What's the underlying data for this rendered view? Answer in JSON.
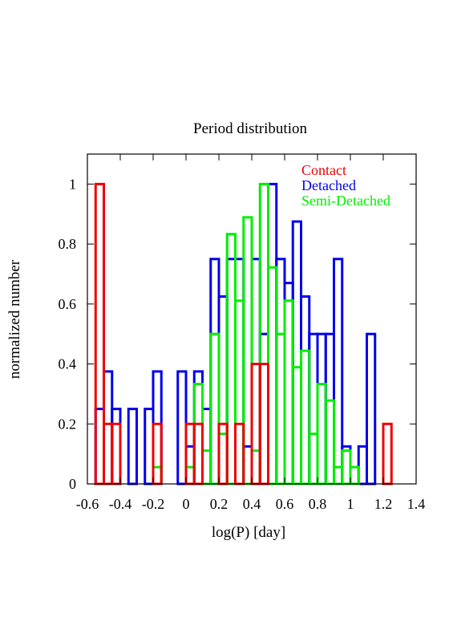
{
  "chart_data": {
    "type": "histogram",
    "title": "Period distribution",
    "xlabel": "log(P) [day]",
    "ylabel": "normalized number",
    "xlim": [
      -0.6,
      1.4
    ],
    "ylim": [
      0,
      1.1
    ],
    "xticks": [
      "-0.6",
      "-0.4",
      "-0.2",
      "0",
      "0.2",
      "0.4",
      "0.6",
      "0.8",
      "1",
      "1.2",
      "1.4"
    ],
    "yticks": [
      "0",
      "0.2",
      "0.4",
      "0.6",
      "0.8",
      "1"
    ],
    "grid": false,
    "legend_position": "top-right",
    "bin_width": 0.05,
    "series": [
      {
        "name": "Detached",
        "color": "#0000ee",
        "bins": [
          {
            "x0": -0.55,
            "x1": -0.5,
            "value": 0.25
          },
          {
            "x0": -0.5,
            "x1": -0.45,
            "value": 0.375
          },
          {
            "x0": -0.45,
            "x1": -0.4,
            "value": 0.25
          },
          {
            "x0": -0.4,
            "x1": -0.35,
            "value": 0
          },
          {
            "x0": -0.35,
            "x1": -0.3,
            "value": 0.25
          },
          {
            "x0": -0.3,
            "x1": -0.25,
            "value": 0
          },
          {
            "x0": -0.25,
            "x1": -0.2,
            "value": 0.25
          },
          {
            "x0": -0.2,
            "x1": -0.15,
            "value": 0.375
          },
          {
            "x0": -0.15,
            "x1": -0.1,
            "value": 0
          },
          {
            "x0": -0.1,
            "x1": -0.05,
            "value": 0
          },
          {
            "x0": -0.05,
            "x1": 0.0,
            "value": 0.375
          },
          {
            "x0": 0.0,
            "x1": 0.05,
            "value": 0.125
          },
          {
            "x0": 0.05,
            "x1": 0.1,
            "value": 0.375
          },
          {
            "x0": 0.1,
            "x1": 0.15,
            "value": 0.25
          },
          {
            "x0": 0.15,
            "x1": 0.2,
            "value": 0.75
          },
          {
            "x0": 0.2,
            "x1": 0.25,
            "value": 0.625
          },
          {
            "x0": 0.25,
            "x1": 0.3,
            "value": 0.75
          },
          {
            "x0": 0.3,
            "x1": 0.35,
            "value": 0.75
          },
          {
            "x0": 0.35,
            "x1": 0.4,
            "value": 0.125
          },
          {
            "x0": 0.4,
            "x1": 0.45,
            "value": 0.75
          },
          {
            "x0": 0.45,
            "x1": 0.5,
            "value": 0.5
          },
          {
            "x0": 0.5,
            "x1": 0.55,
            "value": 1.0
          },
          {
            "x0": 0.55,
            "x1": 0.6,
            "value": 0.75
          },
          {
            "x0": 0.6,
            "x1": 0.65,
            "value": 0.67
          },
          {
            "x0": 0.65,
            "x1": 0.7,
            "value": 0.875
          },
          {
            "x0": 0.7,
            "x1": 0.75,
            "value": 0.625
          },
          {
            "x0": 0.75,
            "x1": 0.8,
            "value": 0.5
          },
          {
            "x0": 0.8,
            "x1": 0.85,
            "value": 0.5
          },
          {
            "x0": 0.85,
            "x1": 0.9,
            "value": 0.5
          },
          {
            "x0": 0.9,
            "x1": 0.95,
            "value": 0.75
          },
          {
            "x0": 0.95,
            "x1": 1.0,
            "value": 0.125
          },
          {
            "x0": 1.0,
            "x1": 1.05,
            "value": 0
          },
          {
            "x0": 1.05,
            "x1": 1.1,
            "value": 0.125
          },
          {
            "x0": 1.1,
            "x1": 1.15,
            "value": 0.5
          },
          {
            "x0": 1.15,
            "x1": 1.2,
            "value": 0
          }
        ]
      },
      {
        "name": "Semi-Detached",
        "color": "#00ee00",
        "bins": [
          {
            "x0": -0.2,
            "x1": -0.15,
            "value": 0.056
          },
          {
            "x0": 0.0,
            "x1": 0.05,
            "value": 0.056
          },
          {
            "x0": 0.05,
            "x1": 0.1,
            "value": 0.333
          },
          {
            "x0": 0.1,
            "x1": 0.15,
            "value": 0.111
          },
          {
            "x0": 0.15,
            "x1": 0.2,
            "value": 0.5
          },
          {
            "x0": 0.2,
            "x1": 0.25,
            "value": 0.167
          },
          {
            "x0": 0.25,
            "x1": 0.3,
            "value": 0.833
          },
          {
            "x0": 0.3,
            "x1": 0.35,
            "value": 0.611
          },
          {
            "x0": 0.35,
            "x1": 0.4,
            "value": 0.889
          },
          {
            "x0": 0.4,
            "x1": 0.45,
            "value": 0.111
          },
          {
            "x0": 0.45,
            "x1": 0.5,
            "value": 1.0
          },
          {
            "x0": 0.5,
            "x1": 0.55,
            "value": 0.722
          },
          {
            "x0": 0.55,
            "x1": 0.6,
            "value": 0.5
          },
          {
            "x0": 0.6,
            "x1": 0.65,
            "value": 0.611
          },
          {
            "x0": 0.65,
            "x1": 0.7,
            "value": 0.389
          },
          {
            "x0": 0.7,
            "x1": 0.75,
            "value": 0.444
          },
          {
            "x0": 0.75,
            "x1": 0.8,
            "value": 0.167
          },
          {
            "x0": 0.8,
            "x1": 0.85,
            "value": 0.333
          },
          {
            "x0": 0.85,
            "x1": 0.9,
            "value": 0.278
          },
          {
            "x0": 0.9,
            "x1": 0.95,
            "value": 0.056
          },
          {
            "x0": 0.95,
            "x1": 1.0,
            "value": 0.111
          },
          {
            "x0": 1.0,
            "x1": 1.05,
            "value": 0.056
          }
        ]
      },
      {
        "name": "Contact",
        "color": "#ee0000",
        "bins": [
          {
            "x0": -0.55,
            "x1": -0.5,
            "value": 1.0
          },
          {
            "x0": -0.5,
            "x1": -0.45,
            "value": 0.2
          },
          {
            "x0": -0.45,
            "x1": -0.4,
            "value": 0.2
          },
          {
            "x0": -0.2,
            "x1": -0.15,
            "value": 0.2
          },
          {
            "x0": 0.0,
            "x1": 0.05,
            "value": 0.2
          },
          {
            "x0": 0.05,
            "x1": 0.1,
            "value": 0.2
          },
          {
            "x0": 0.2,
            "x1": 0.25,
            "value": 0.2
          },
          {
            "x0": 0.3,
            "x1": 0.35,
            "value": 0.2
          },
          {
            "x0": 0.4,
            "x1": 0.45,
            "value": 0.4
          },
          {
            "x0": 0.45,
            "x1": 0.5,
            "value": 0.4
          },
          {
            "x0": 1.2,
            "x1": 1.25,
            "value": 0.2
          }
        ]
      }
    ],
    "legend": [
      {
        "label": "Contact",
        "color": "#ee0000"
      },
      {
        "label": "Detached",
        "color": "#0000ee"
      },
      {
        "label": "Semi-Detached",
        "color": "#00ee00"
      }
    ]
  }
}
